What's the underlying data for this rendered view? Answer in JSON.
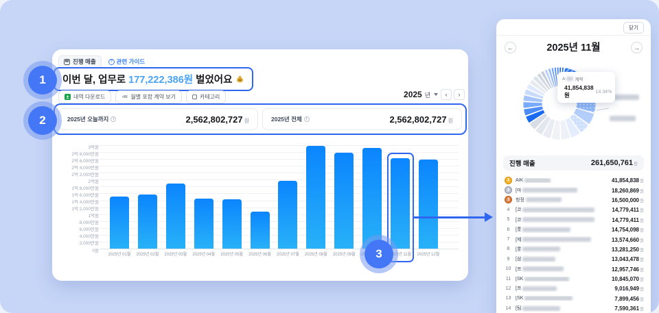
{
  "colors": {
    "background": "#c7d6f7",
    "annotation_blue": "#2f66f0",
    "bar_gradient_top": "#0b85fe",
    "bar_gradient_bottom": "#28b1f8",
    "headline_amount_blue": "#47a3f7"
  },
  "annotations": {
    "step_1": "1",
    "step_2": "2",
    "step_3": "3"
  },
  "main_card": {
    "badge": {
      "icon": "₩",
      "label": "진행 매출"
    },
    "guide_link": {
      "icon": "?",
      "label": "관련 가이드"
    },
    "headline": {
      "pre": "이번 달, 업무로 ",
      "amount": "177,222,386원",
      "post": " 벌었어요"
    },
    "toolbar": {
      "download": "내역 다운로드",
      "monthly_view": "월별 포함 계약 보기",
      "category": "카테고리"
    },
    "year_selector": {
      "year": "2025",
      "unit": "년",
      "prev": "‹",
      "next": "›"
    },
    "stats": [
      {
        "label": "2025년 오늘까지",
        "value": "2,562,802,727",
        "unit": "원"
      },
      {
        "label": "2025년 전체",
        "value": "2,562,802,727",
        "unit": "원"
      }
    ]
  },
  "chart_data": [
    {
      "type": "bar",
      "title": "2025 monthly ongoing revenue",
      "categories": [
        "2025년 01월",
        "2025년 02월",
        "2025년 03월",
        "2025년 04월",
        "2025년 05월",
        "2025년 06월",
        "2025년 07월",
        "2025년 08월",
        "2025년 09월",
        "2025년 10월",
        "2025년 11월",
        "2025년 12월"
      ],
      "values": [
        152000000,
        157000000,
        188000000,
        145000000,
        143000000,
        108000000,
        196000000,
        298000000,
        279000000,
        292000000,
        261650761,
        259000000
      ],
      "ylim": [
        0,
        300000000
      ],
      "yticks": [
        "3억원",
        "2억 8,000만원",
        "2억 6,000만원",
        "2억 4,000만원",
        "2억 2,000만원",
        "2억원",
        "1억 8,000만원",
        "1억 6,000만원",
        "1억 4,000만원",
        "1억 2,000만원",
        "1억원",
        "8,000만원",
        "6,000만원",
        "4,000만원",
        "2,000만원",
        "0원"
      ],
      "grid": true,
      "legend": "none",
      "highlight_index": 10
    },
    {
      "type": "pie",
      "donut": true,
      "title": "2025년 11월 revenue breakdown",
      "highlighted_slice": {
        "label_prefix": "A",
        "label_suffix": "계약",
        "value": 41854838,
        "percent": 14.34
      },
      "segments": [
        {
          "percent": 0.8,
          "color": "#1b5ad8"
        },
        {
          "percent": 0.9,
          "color": "#2e7df6"
        },
        {
          "percent": 14.34,
          "color": "#2a78f5",
          "pattern": "stripes"
        },
        {
          "percent": 7.0,
          "color": "#6ba3f8"
        },
        {
          "percent": 6.2,
          "color": "#8fb9fa",
          "pattern": "dots"
        },
        {
          "percent": 5.6,
          "color": "#b3cefb"
        },
        {
          "percent": 5.0,
          "color": "#cfe0fd",
          "pattern": "dots"
        },
        {
          "percent": 4.7,
          "color": "#e3edfe"
        },
        {
          "percent": 4.4,
          "color": "#eef2f8"
        },
        {
          "percent": 4.2,
          "color": "#f0f2f6"
        },
        {
          "percent": 4.0,
          "color": "#e9ecf2"
        },
        {
          "percent": 3.8,
          "color": "#e2e6ed"
        },
        {
          "percent": 3.6,
          "color": "#d7dce6"
        },
        {
          "percent": 3.4,
          "color": "#1b6bf2"
        },
        {
          "percent": 3.2,
          "color": "#4c8cf7"
        },
        {
          "percent": 3.0,
          "color": "#79a9f9"
        },
        {
          "percent": 2.8,
          "color": "#a5c4fb"
        },
        {
          "percent": 2.6,
          "color": "#c8dbfc"
        },
        {
          "percent": 2.4,
          "color": "#e0e9fd"
        },
        {
          "percent": 2.2,
          "color": "#e7eaf0"
        },
        {
          "percent": 2.0,
          "color": "#dde2ea"
        },
        {
          "percent": 1.8,
          "color": "#d2d8e2"
        },
        {
          "percent": 1.6,
          "color": "#c6cdd9"
        },
        {
          "percent": 1.4,
          "color": "#bdd2fb"
        },
        {
          "percent": 1.2,
          "color": "#93b8fa"
        },
        {
          "percent": 1.0,
          "color": "#6fa2f8"
        },
        {
          "percent": 0.9,
          "color": "#4a8af6"
        },
        {
          "percent": 0.8,
          "color": "#2b76f4"
        }
      ]
    }
  ],
  "side_panel": {
    "close_label": "닫기",
    "title": "2025년 11월",
    "nav_prev": "←",
    "nav_next": "→",
    "tooltip": {
      "name_prefix": "A",
      "name_suffix": "계약",
      "value": "41,854,838원",
      "percent": "14.34%"
    },
    "summary": {
      "label": "진행 매출",
      "value": "261,650,761",
      "unit": "원"
    },
    "list": [
      {
        "rank": "1",
        "medal": "gold",
        "name_prefix": "AIK",
        "blur_w": 38,
        "value": "41,854,838",
        "unit": "원"
      },
      {
        "rank": "2",
        "medal": "silver",
        "name_prefix": "[마",
        "blur_w": 80,
        "value": "18,260,869",
        "unit": "원"
      },
      {
        "rank": "3",
        "medal": "bronze",
        "name_prefix": "청정",
        "blur_w": 52,
        "value": "16,500,000",
        "unit": "원"
      },
      {
        "rank": "4",
        "name_prefix": "[코",
        "blur_w": 105,
        "value": "14,779,411",
        "unit": "원"
      },
      {
        "rank": "5",
        "name_prefix": "[코",
        "blur_w": 105,
        "value": "14,779,411",
        "unit": "원"
      },
      {
        "rank": "6",
        "name_prefix": "[롯",
        "blur_w": 70,
        "value": "14,754,098",
        "unit": "원"
      },
      {
        "rank": "7",
        "name_prefix": "[제",
        "blur_w": 100,
        "value": "13,574,660",
        "unit": "원"
      },
      {
        "rank": "8",
        "name_prefix": "[롯",
        "blur_w": 55,
        "value": "13,281,250",
        "unit": "원"
      },
      {
        "rank": "9",
        "name_prefix": "[삼",
        "blur_w": 48,
        "value": "13,043,478",
        "unit": "원"
      },
      {
        "rank": "10",
        "name_prefix": "[프",
        "blur_w": 60,
        "value": "12,957,746",
        "unit": "원"
      },
      {
        "rank": "11",
        "name_prefix": "[SK",
        "blur_w": 65,
        "value": "10,845,070",
        "unit": "원"
      },
      {
        "rank": "12",
        "name_prefix": "[프",
        "blur_w": 50,
        "value": "9,016,949",
        "unit": "원"
      },
      {
        "rank": "13",
        "name_prefix": "[SK",
        "blur_w": 70,
        "value": "7,899,456",
        "unit": "원"
      },
      {
        "rank": "14",
        "name_prefix": "[팀",
        "blur_w": 55,
        "value": "7,590,361",
        "unit": "원"
      }
    ]
  }
}
